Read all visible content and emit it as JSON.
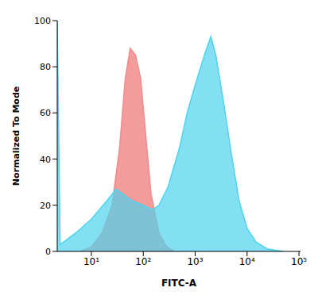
{
  "chart_data": {
    "type": "area",
    "x_label": "FITC-A",
    "y_label": "Normalized To Mode",
    "log": "x",
    "grid": false,
    "xlim": [
      2.2,
      107000
    ],
    "xticks": [
      {
        "value": 10,
        "label": "10¹"
      },
      {
        "value": 100,
        "label": "10²"
      },
      {
        "value": 1000,
        "label": "10³"
      },
      {
        "value": 10000,
        "label": "10⁴"
      },
      {
        "value": 100000,
        "label": "10⁵"
      }
    ],
    "ylim": [
      0,
      100
    ],
    "yticks": [
      0,
      20,
      40,
      60,
      80,
      100
    ],
    "series": [
      {
        "color": "#f28b8b",
        "x": [
          6,
          10,
          16,
          25,
          35,
          45,
          56,
          71,
          89,
          112,
          141,
          200,
          282,
          400
        ],
        "values": [
          0,
          2,
          8,
          20,
          45,
          75,
          88,
          85,
          75,
          50,
          25,
          8,
          2,
          0
        ]
      },
      {
        "color": "#4fd3ee",
        "x": [
          2.2,
          2.5,
          5,
          10,
          20,
          30,
          40,
          60,
          100,
          150,
          200,
          300,
          500,
          700,
          1000,
          1500,
          2000,
          2500,
          3500,
          5000,
          7000,
          10000,
          15000,
          25000,
          50000
        ],
        "values": [
          100,
          3,
          8,
          14,
          22,
          27,
          25,
          22,
          20,
          18,
          20,
          28,
          45,
          60,
          72,
          85,
          93,
          85,
          65,
          42,
          22,
          10,
          4,
          1,
          0
        ]
      }
    ]
  }
}
